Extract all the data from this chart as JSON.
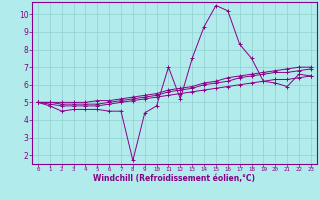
{
  "background_color": "#b2ebeb",
  "grid_color": "#90d0d0",
  "line_color": "#880088",
  "spine_color": "#880088",
  "xlim": [
    -0.5,
    23.5
  ],
  "ylim": [
    1.5,
    10.7
  ],
  "xlabel": "Windchill (Refroidissement éolien,°C)",
  "yticks": [
    2,
    3,
    4,
    5,
    6,
    7,
    8,
    9,
    10
  ],
  "xticks": [
    0,
    1,
    2,
    3,
    4,
    5,
    6,
    7,
    8,
    9,
    10,
    11,
    12,
    13,
    14,
    15,
    16,
    17,
    18,
    19,
    20,
    21,
    22,
    23
  ],
  "series": [
    [
      5.0,
      4.8,
      4.5,
      4.6,
      4.6,
      4.6,
      4.5,
      4.5,
      1.7,
      4.4,
      4.8,
      7.0,
      5.2,
      7.5,
      9.3,
      10.5,
      10.2,
      8.3,
      7.5,
      6.2,
      6.1,
      5.9,
      6.6,
      6.5
    ],
    [
      5.0,
      4.9,
      4.8,
      4.8,
      4.8,
      4.8,
      4.9,
      5.0,
      5.1,
      5.2,
      5.3,
      5.4,
      5.5,
      5.6,
      5.7,
      5.8,
      5.9,
      6.0,
      6.1,
      6.2,
      6.3,
      6.3,
      6.4,
      6.5
    ],
    [
      5.0,
      5.0,
      4.9,
      4.9,
      4.9,
      4.9,
      5.0,
      5.1,
      5.2,
      5.3,
      5.4,
      5.6,
      5.7,
      5.8,
      6.0,
      6.1,
      6.2,
      6.4,
      6.5,
      6.6,
      6.7,
      6.7,
      6.8,
      6.9
    ],
    [
      5.0,
      5.0,
      5.0,
      5.0,
      5.0,
      5.1,
      5.1,
      5.2,
      5.3,
      5.4,
      5.5,
      5.7,
      5.8,
      5.9,
      6.1,
      6.2,
      6.4,
      6.5,
      6.6,
      6.7,
      6.8,
      6.9,
      7.0,
      7.0
    ]
  ],
  "xlabel_fontsize": 5.5,
  "xlabel_bold": true,
  "xtick_fontsize": 4.2,
  "ytick_fontsize": 5.5,
  "linewidth": 0.7,
  "markersize": 2.5,
  "marker": "+"
}
